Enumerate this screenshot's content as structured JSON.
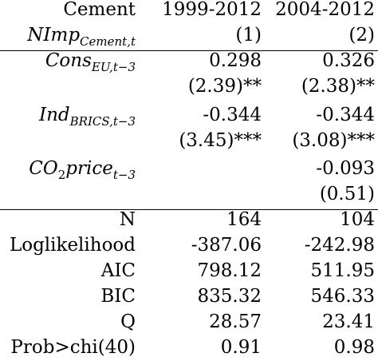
{
  "header": {
    "row1": {
      "label": "Cement",
      "col1": "1999-2012",
      "col2": "2004-2012"
    },
    "row2": {
      "label_main": "NImp",
      "label_sub": "Cement,t",
      "col1": "(1)",
      "col2": "(2)"
    }
  },
  "coefficients": [
    {
      "label_main": "Cons",
      "label_sub": "EU,t−3",
      "col1": "0.298",
      "col2": "0.326",
      "stat1": "(2.39)**",
      "stat2": "(2.38)**"
    },
    {
      "label_main": "Ind",
      "label_sub": "BRICS,t−3",
      "col1": "-0.344",
      "col2": "-0.344",
      "stat1": "(3.45)***",
      "stat2": "(3.08)***"
    },
    {
      "label_a": "CO",
      "label_a_sub": "2",
      "label_b": "price",
      "label_sub": "t−3",
      "col1": "",
      "col2": "-0.093",
      "stat1": "",
      "stat2": "(0.51)"
    }
  ],
  "stats": [
    {
      "label": "N",
      "col1": "164",
      "col2": "104"
    },
    {
      "label": "Loglikelihood",
      "col1": "-387.06",
      "col2": "-242.98"
    },
    {
      "label": "AIC",
      "col1": "798.12",
      "col2": "511.95"
    },
    {
      "label": "BIC",
      "col1": "835.32",
      "col2": "546.33"
    },
    {
      "label": "Q",
      "col1": "28.57",
      "col2": "23.41"
    },
    {
      "label": "Prob>chi(40)",
      "col1": "0.91",
      "col2": "0.98"
    }
  ]
}
